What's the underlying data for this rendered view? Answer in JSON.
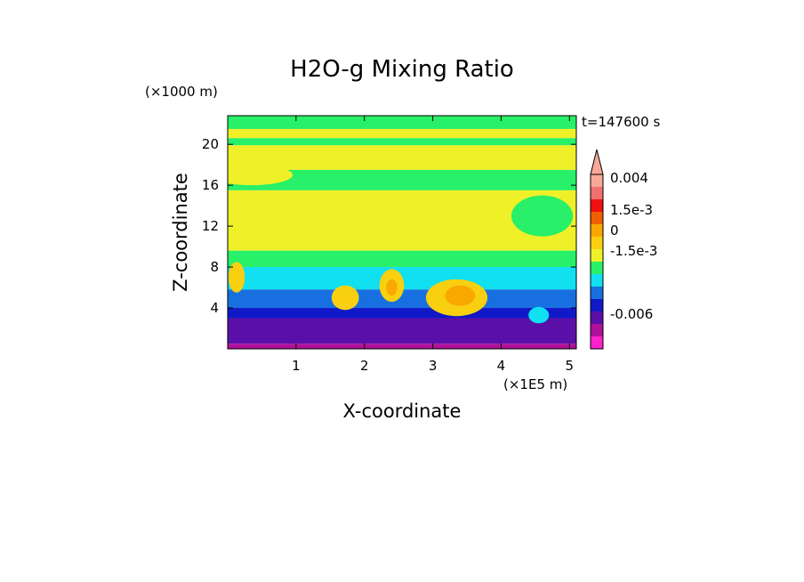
{
  "chart_data": {
    "type": "heatmap",
    "title": "H2O-g Mixing Ratio",
    "xlabel": "X-coordinate",
    "ylabel": "Z-coordinate",
    "x_unit": "(×1E5 m)",
    "y_unit": "(×1000 m)",
    "time_label": "t=147600 s",
    "x_ticks": [
      "1",
      "2",
      "3",
      "4",
      "5"
    ],
    "x_tick_values": [
      1,
      2,
      3,
      4,
      5
    ],
    "y_ticks": [
      "4",
      "8",
      "12",
      "16",
      "20"
    ],
    "y_tick_values": [
      4,
      8,
      12,
      16,
      20
    ],
    "xlim": [
      0,
      5.1
    ],
    "ylim": [
      0,
      22.8
    ],
    "colorbar": {
      "colors": [
        "#ff22cc",
        "#b0109a",
        "#5a10a8",
        "#1018c8",
        "#1870e0",
        "#10e0f0",
        "#28f068",
        "#f0f028",
        "#f8d010",
        "#f8a800",
        "#f06000",
        "#f01010",
        "#f07070",
        "#f8a898"
      ],
      "tick_labels": [
        "0.004",
        "1.5e-3",
        "0",
        "-1.5e-3",
        "-0.006"
      ],
      "extend_top": true
    },
    "horizontal_bands": [
      {
        "z_min": 21.5,
        "z_max": 22.8,
        "color": "#28f068"
      },
      {
        "z_min": 20.6,
        "z_max": 21.5,
        "color": "#f0f028"
      },
      {
        "z_min": 19.9,
        "z_max": 20.6,
        "color": "#28f068"
      },
      {
        "z_min": 17.5,
        "z_max": 19.9,
        "color": "#f0f028"
      },
      {
        "z_min": 15.5,
        "z_max": 17.5,
        "color": "#28f068"
      },
      {
        "z_min": 9.6,
        "z_max": 15.5,
        "color": "#f0f028"
      },
      {
        "z_min": 8.0,
        "z_max": 9.6,
        "color": "#28f068"
      },
      {
        "z_min": 5.8,
        "z_max": 8.0,
        "color": "#10e0f0"
      },
      {
        "z_min": 4.0,
        "z_max": 5.8,
        "color": "#1870e0"
      },
      {
        "z_min": 3.0,
        "z_max": 4.0,
        "color": "#1018c8"
      },
      {
        "z_min": 0.5,
        "z_max": 3.0,
        "color": "#5a10a8"
      },
      {
        "z_min": 0.0,
        "z_max": 0.5,
        "color": "#b0109a"
      }
    ],
    "features": [
      {
        "type": "plume",
        "x": 3.35,
        "z": 5.0,
        "rx": 0.45,
        "rz": 1.8,
        "color": "#f8d010"
      },
      {
        "type": "plume",
        "x": 3.4,
        "z": 5.2,
        "rx": 0.22,
        "rz": 1.0,
        "color": "#f8a800"
      },
      {
        "type": "plume",
        "x": 2.4,
        "z": 6.2,
        "rx": 0.18,
        "rz": 1.6,
        "color": "#f8d010"
      },
      {
        "type": "plume",
        "x": 2.4,
        "z": 6.0,
        "rx": 0.08,
        "rz": 0.8,
        "color": "#f8a800"
      },
      {
        "type": "plume",
        "x": 1.72,
        "z": 5.0,
        "rx": 0.2,
        "rz": 1.2,
        "color": "#f8d010"
      },
      {
        "type": "plume",
        "x": 0.13,
        "z": 7.0,
        "rx": 0.12,
        "rz": 1.5,
        "color": "#f8d010"
      },
      {
        "type": "plume",
        "x": 4.55,
        "z": 3.3,
        "rx": 0.15,
        "rz": 0.8,
        "color": "#10e0f0"
      },
      {
        "type": "cloud",
        "x": 0.35,
        "z": 17.0,
        "rx": 0.6,
        "rz": 1.0,
        "color": "#f0f028"
      },
      {
        "type": "cloud",
        "x": 4.6,
        "z": 13.0,
        "rx": 0.45,
        "rz": 2.0,
        "color": "#28f068"
      }
    ]
  }
}
